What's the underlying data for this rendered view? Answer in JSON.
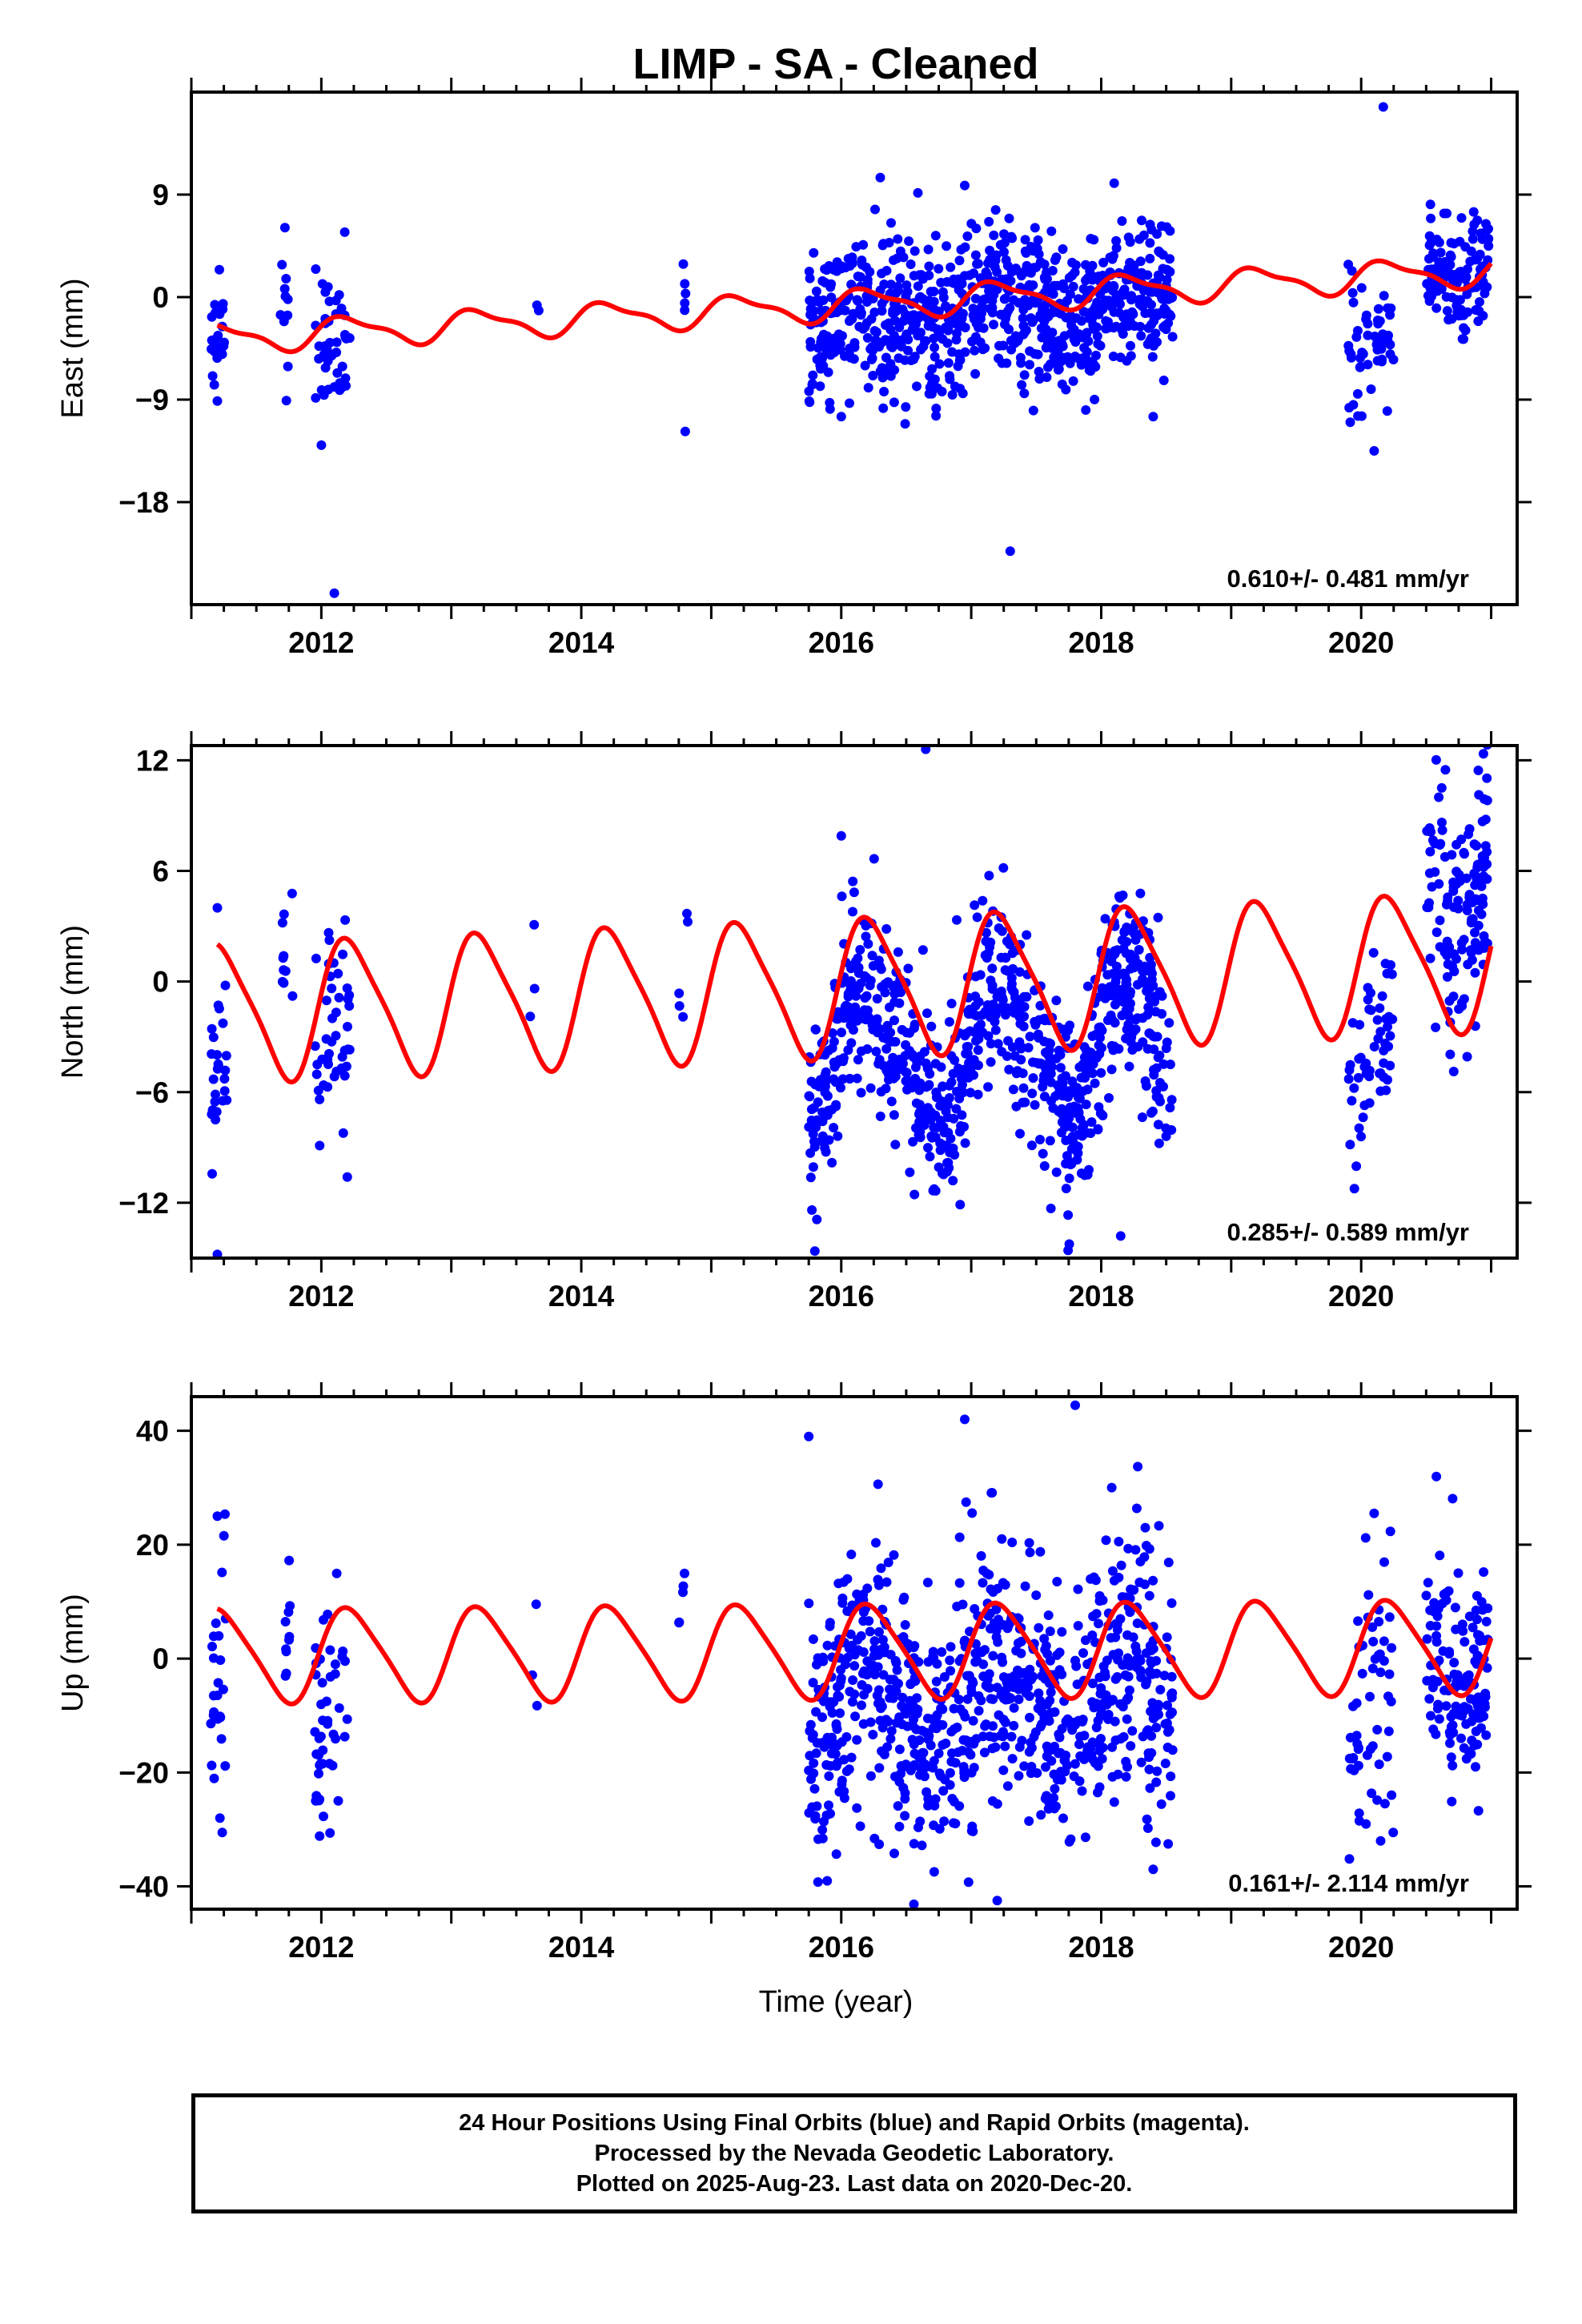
{
  "chart_data": {
    "type": "scatter",
    "title": "LIMP  - SA - Cleaned",
    "xlabel": "Time (year)",
    "xlim": [
      2011.0,
      2021.2
    ],
    "x_ticks": [
      2012,
      2014,
      2016,
      2018,
      2020
    ],
    "panels": [
      {
        "name": "east",
        "ylabel": "East (mm)",
        "ylim": [
          -27,
          18
        ],
        "y_ticks": [
          9,
          0,
          -9,
          -18
        ],
        "y_tick_labels": [
          "9",
          "0",
          "−9",
          "−18"
        ],
        "rate": "0.610+/- 0.481 mm/yr",
        "trend": {
          "mean_at_2016": -0.7,
          "rate": 0.61,
          "annual": [
            1.2,
            0.3
          ],
          "semiannual": [
            0.3,
            0.3
          ]
        },
        "segments": [
          {
            "t0": 2011.15,
            "t1": 2011.28,
            "n": 25,
            "mean": -3.8,
            "sd": 2.4
          },
          {
            "t0": 2011.68,
            "t1": 2011.75,
            "n": 10,
            "mean": -1.8,
            "sd": 2.5
          },
          {
            "t0": 2011.95,
            "t1": 2012.22,
            "n": 45,
            "mean": -4.5,
            "sd": 3.0
          },
          {
            "t0": 2013.65,
            "t1": 2013.68,
            "n": 2,
            "mean": -1.0,
            "sd": 0.5
          },
          {
            "t0": 2014.78,
            "t1": 2014.82,
            "n": 5,
            "mean": -1.5,
            "sd": 1.8
          },
          {
            "t0": 2015.75,
            "t1": 2018.55,
            "n": 850,
            "mean": 0.3,
            "sd": 3.3
          },
          {
            "t0": 2019.9,
            "t1": 2020.25,
            "n": 55,
            "mean": -2.5,
            "sd": 3.5
          },
          {
            "t0": 2020.5,
            "t1": 2020.98,
            "n": 130,
            "mean": 1.2,
            "sd": 2.6
          }
        ],
        "outliers": [
          {
            "x": 2012.1,
            "y": -26.0
          },
          {
            "x": 2017.3,
            "y": -22.3
          },
          {
            "x": 2020.17,
            "y": 16.7
          },
          {
            "x": 2011.72,
            "y": 6.1
          },
          {
            "x": 2012.18,
            "y": 5.7
          },
          {
            "x": 2016.3,
            "y": 10.5
          },
          {
            "x": 2016.95,
            "y": 9.8
          },
          {
            "x": 2018.1,
            "y": 10.0
          },
          {
            "x": 2012.0,
            "y": -13.0
          },
          {
            "x": 2014.8,
            "y": -11.8
          },
          {
            "x": 2020.1,
            "y": -13.5
          },
          {
            "x": 2016.0,
            "y": -10.5
          },
          {
            "x": 2018.4,
            "y": -10.5
          }
        ]
      },
      {
        "name": "north",
        "ylabel": "North (mm)",
        "ylim": [
          -15,
          12.8
        ],
        "y_ticks": [
          12,
          6,
          0,
          -6,
          -12
        ],
        "y_tick_labels": [
          "12",
          "6",
          "0",
          "−6",
          "−12"
        ],
        "rate": "0.285+/- 0.589 mm/yr",
        "trend": {
          "mean_at_2016": -0.3,
          "rate": 0.285,
          "annual": [
            3.6,
            0.5
          ],
          "semiannual": [
            0.6,
            0.3
          ]
        },
        "segments": [
          {
            "t0": 2011.15,
            "t1": 2011.28,
            "n": 25,
            "mean": -4.5,
            "sd": 2.5
          },
          {
            "t0": 2011.7,
            "t1": 2011.78,
            "n": 10,
            "mean": 1.0,
            "sd": 1.8
          },
          {
            "t0": 2011.95,
            "t1": 2012.22,
            "n": 45,
            "mean": -3.2,
            "sd": 2.8
          },
          {
            "t0": 2013.6,
            "t1": 2013.68,
            "n": 3,
            "mean": 0.5,
            "sd": 1.8
          },
          {
            "t0": 2014.75,
            "t1": 2014.82,
            "n": 5,
            "mean": -0.5,
            "sd": 1.5
          },
          {
            "t0": 2015.75,
            "t1": 2018.55,
            "n": 850,
            "mean": 0.0,
            "sd": 2.6
          },
          {
            "t0": 2019.9,
            "t1": 2020.25,
            "n": 55,
            "mean": -3.0,
            "sd": 2.8
          },
          {
            "t0": 2020.5,
            "t1": 2020.98,
            "n": 130,
            "mean": 3.0,
            "sd": 2.8
          }
        ],
        "outliers": [
          {
            "x": 2011.2,
            "y": -14.8
          },
          {
            "x": 2018.15,
            "y": -13.8
          },
          {
            "x": 2016.65,
            "y": 12.6
          },
          {
            "x": 2020.62,
            "y": 10.5
          },
          {
            "x": 2016.0,
            "y": 7.9
          },
          {
            "x": 2012.2,
            "y": -10.6
          },
          {
            "x": 2011.2,
            "y": 4.0
          }
        ]
      },
      {
        "name": "up",
        "ylabel": "Up (mm)",
        "ylim": [
          -44,
          46
        ],
        "y_ticks": [
          40,
          20,
          0,
          -20,
          -40
        ],
        "y_tick_labels": [
          "40",
          "20",
          "0",
          "−20",
          "−40"
        ],
        "rate": "0.161+/- 2.114 mm/yr",
        "trend": {
          "mean_at_2016": 1.3,
          "rate": 0.161,
          "annual": [
            8.0,
            1.0
          ],
          "semiannual": [
            1.2,
            0.5
          ]
        },
        "segments": [
          {
            "t0": 2011.15,
            "t1": 2011.28,
            "n": 25,
            "mean": -6.0,
            "sd": 13.0
          },
          {
            "t0": 2011.7,
            "t1": 2011.78,
            "n": 10,
            "mean": 5.0,
            "sd": 6.0
          },
          {
            "t0": 2011.95,
            "t1": 2012.22,
            "n": 45,
            "mean": -6.0,
            "sd": 10.0
          },
          {
            "t0": 2013.6,
            "t1": 2013.68,
            "n": 3,
            "mean": 2.0,
            "sd": 5.0
          },
          {
            "t0": 2014.75,
            "t1": 2014.82,
            "n": 5,
            "mean": 13.0,
            "sd": 5.0
          },
          {
            "t0": 2015.75,
            "t1": 2018.55,
            "n": 850,
            "mean": 1.0,
            "sd": 12.0
          },
          {
            "t0": 2019.9,
            "t1": 2020.25,
            "n": 55,
            "mean": -5.0,
            "sd": 11.0
          },
          {
            "t0": 2020.5,
            "t1": 2020.98,
            "n": 130,
            "mean": -4.0,
            "sd": 10.0
          }
        ],
        "outliers": [
          {
            "x": 2017.8,
            "y": 44.5
          },
          {
            "x": 2016.95,
            "y": 42.0
          },
          {
            "x": 2017.2,
            "y": -42.5
          },
          {
            "x": 2015.75,
            "y": 39.0
          },
          {
            "x": 2018.4,
            "y": -37.0
          },
          {
            "x": 2011.2,
            "y": 25.0
          },
          {
            "x": 2011.22,
            "y": -28.0
          },
          {
            "x": 2020.15,
            "y": -32.0
          },
          {
            "x": 2020.1,
            "y": 25.5
          }
        ]
      }
    ],
    "series": [
      {
        "name": "Final Orbits",
        "color": "#0000ff",
        "marker": "dot"
      },
      {
        "name": "Model fit",
        "color": "#ff0000",
        "marker": "line"
      }
    ]
  },
  "footer": {
    "line1": "24 Hour Positions Using Final Orbits (blue) and Rapid Orbits (magenta).",
    "line2": "Processed by the Nevada Geodetic Laboratory.",
    "line3": "Plotted on 2025-Aug-23. Last data on 2020-Dec-20."
  }
}
